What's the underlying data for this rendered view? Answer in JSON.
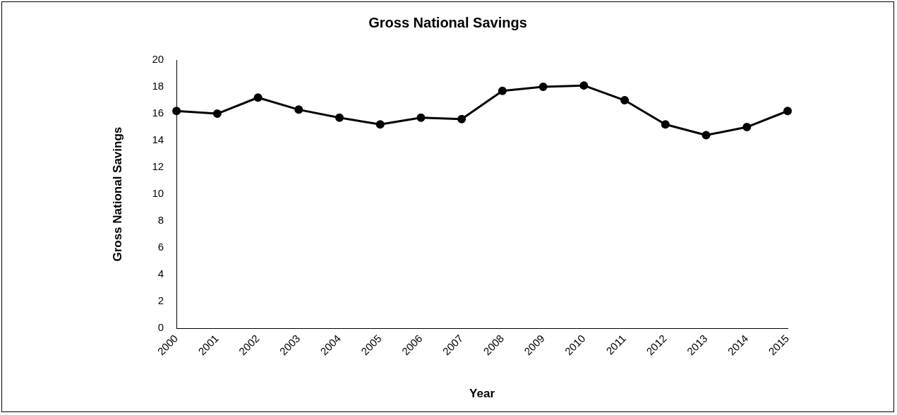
{
  "chart_data": {
    "type": "line",
    "title": "Gross National Savings",
    "xlabel": "Year",
    "ylabel": "Gross National Savings",
    "categories": [
      "2000",
      "2001",
      "2002",
      "2003",
      "2004",
      "2005",
      "2006",
      "2007",
      "2008",
      "2009",
      "2010",
      "2011",
      "2012",
      "2013",
      "2014",
      "2015"
    ],
    "series": [
      {
        "color": "#000000",
        "values": [
          16.2,
          16.0,
          17.2,
          16.3,
          15.7,
          15.2,
          15.7,
          15.6,
          17.7,
          18.0,
          18.1,
          17.0,
          15.2,
          14.4,
          15.0,
          16.2
        ]
      }
    ],
    "ylim": [
      0,
      20
    ],
    "yticks": [
      0,
      2,
      4,
      6,
      8,
      10,
      12,
      14,
      16,
      18,
      20
    ],
    "grid": false,
    "legend": false,
    "marker": "circle",
    "line_style": "solid"
  }
}
